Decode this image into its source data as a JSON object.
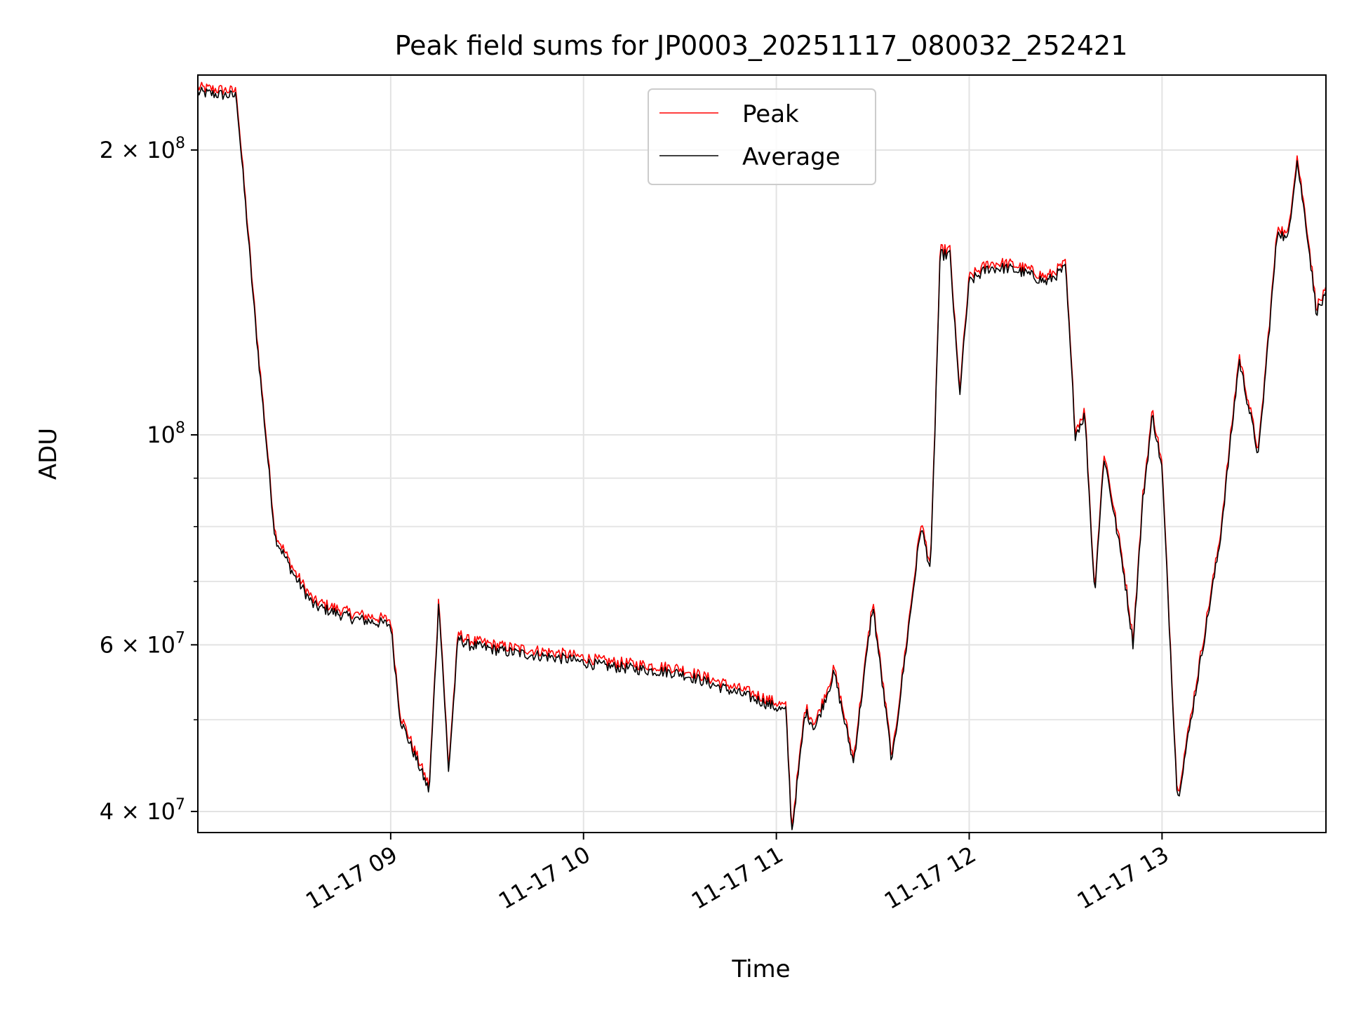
{
  "chart_data": {
    "type": "line",
    "title": "Peak field sums for JP0003_20251117_080032_252421",
    "xlabel": "Time",
    "ylabel": "ADU",
    "yscale": "log",
    "ylim": [
      38000000,
      240000000
    ],
    "xlim": [
      8.0,
      13.85
    ],
    "grid": true,
    "legend_position": "upper center",
    "x_ticks": [
      {
        "value": 9,
        "label": "11-17 09"
      },
      {
        "value": 10,
        "label": "11-17 10"
      },
      {
        "value": 11,
        "label": "11-17 11"
      },
      {
        "value": 12,
        "label": "11-17 12"
      },
      {
        "value": 13,
        "label": "11-17 13"
      }
    ],
    "y_ticks": [
      {
        "value": 40000000,
        "mantissa": "4",
        "exponent": "7"
      },
      {
        "value": 60000000,
        "mantissa": "6",
        "exponent": "7"
      },
      {
        "value": 100000000,
        "mantissa": "",
        "exponent": "8"
      },
      {
        "value": 200000000,
        "mantissa": "2",
        "exponent": "8"
      }
    ],
    "y_minor_ticks": [
      50000000,
      70000000,
      80000000,
      90000000
    ],
    "x_unit": "hours after 2025-11-17 00:00",
    "series": [
      {
        "name": "Peak",
        "color": "#ff0000",
        "offset_factor": 1.012,
        "x": [
          8.0,
          8.2,
          8.3,
          8.4,
          8.5,
          8.6,
          8.8,
          9.0,
          9.05,
          9.2,
          9.25,
          9.3,
          9.35,
          9.4,
          9.6,
          9.9,
          10.1,
          10.5,
          10.9,
          11.05,
          11.08,
          11.15,
          11.2,
          11.3,
          11.4,
          11.5,
          11.6,
          11.7,
          11.75,
          11.8,
          11.85,
          11.9,
          11.95,
          12.0,
          12.1,
          12.2,
          12.3,
          12.4,
          12.5,
          12.55,
          12.6,
          12.65,
          12.7,
          12.8,
          12.85,
          12.9,
          12.95,
          13.0,
          13.08,
          13.15,
          13.3,
          13.4,
          13.5,
          13.6,
          13.65,
          13.7,
          13.75,
          13.8,
          13.85
        ],
        "values": [
          230000000,
          228000000,
          130000000,
          78000000,
          71000000,
          66000000,
          64000000,
          63000000,
          50000000,
          42000000,
          67000000,
          44000000,
          61000000,
          60000000,
          59000000,
          58000000,
          57000000,
          56000000,
          52500000,
          51000000,
          38000000,
          51000000,
          49000000,
          56000000,
          45000000,
          66000000,
          45000000,
          66000000,
          80000000,
          72000000,
          155000000,
          155000000,
          110000000,
          145000000,
          150000000,
          150000000,
          148000000,
          145000000,
          150000000,
          100000000,
          105000000,
          68000000,
          95000000,
          72000000,
          60000000,
          85000000,
          105000000,
          92000000,
          41000000,
          50000000,
          77000000,
          120000000,
          95000000,
          165000000,
          160000000,
          195000000,
          165000000,
          135000000,
          140000000
        ]
      },
      {
        "name": "Average",
        "color": "#000000",
        "offset_factor": 1.0,
        "x": [
          8.0,
          8.2,
          8.3,
          8.4,
          8.5,
          8.6,
          8.8,
          9.0,
          9.05,
          9.2,
          9.25,
          9.3,
          9.35,
          9.4,
          9.6,
          9.9,
          10.1,
          10.5,
          10.9,
          11.05,
          11.08,
          11.15,
          11.2,
          11.3,
          11.4,
          11.5,
          11.6,
          11.7,
          11.75,
          11.8,
          11.85,
          11.9,
          11.95,
          12.0,
          12.1,
          12.2,
          12.3,
          12.4,
          12.5,
          12.55,
          12.6,
          12.65,
          12.7,
          12.8,
          12.85,
          12.9,
          12.95,
          13.0,
          13.08,
          13.15,
          13.3,
          13.4,
          13.5,
          13.6,
          13.65,
          13.7,
          13.75,
          13.8,
          13.85
        ],
        "values": [
          230000000,
          228000000,
          130000000,
          78000000,
          71000000,
          66000000,
          64000000,
          63000000,
          50000000,
          42000000,
          67000000,
          44000000,
          61000000,
          60000000,
          59000000,
          58000000,
          57000000,
          56000000,
          52500000,
          51000000,
          38000000,
          51000000,
          49000000,
          56000000,
          45000000,
          66000000,
          45000000,
          66000000,
          80000000,
          72000000,
          155000000,
          155000000,
          110000000,
          145000000,
          150000000,
          150000000,
          148000000,
          145000000,
          150000000,
          100000000,
          105000000,
          68000000,
          95000000,
          72000000,
          60000000,
          85000000,
          105000000,
          92000000,
          41000000,
          50000000,
          77000000,
          120000000,
          95000000,
          165000000,
          160000000,
          195000000,
          165000000,
          135000000,
          140000000
        ]
      }
    ]
  }
}
